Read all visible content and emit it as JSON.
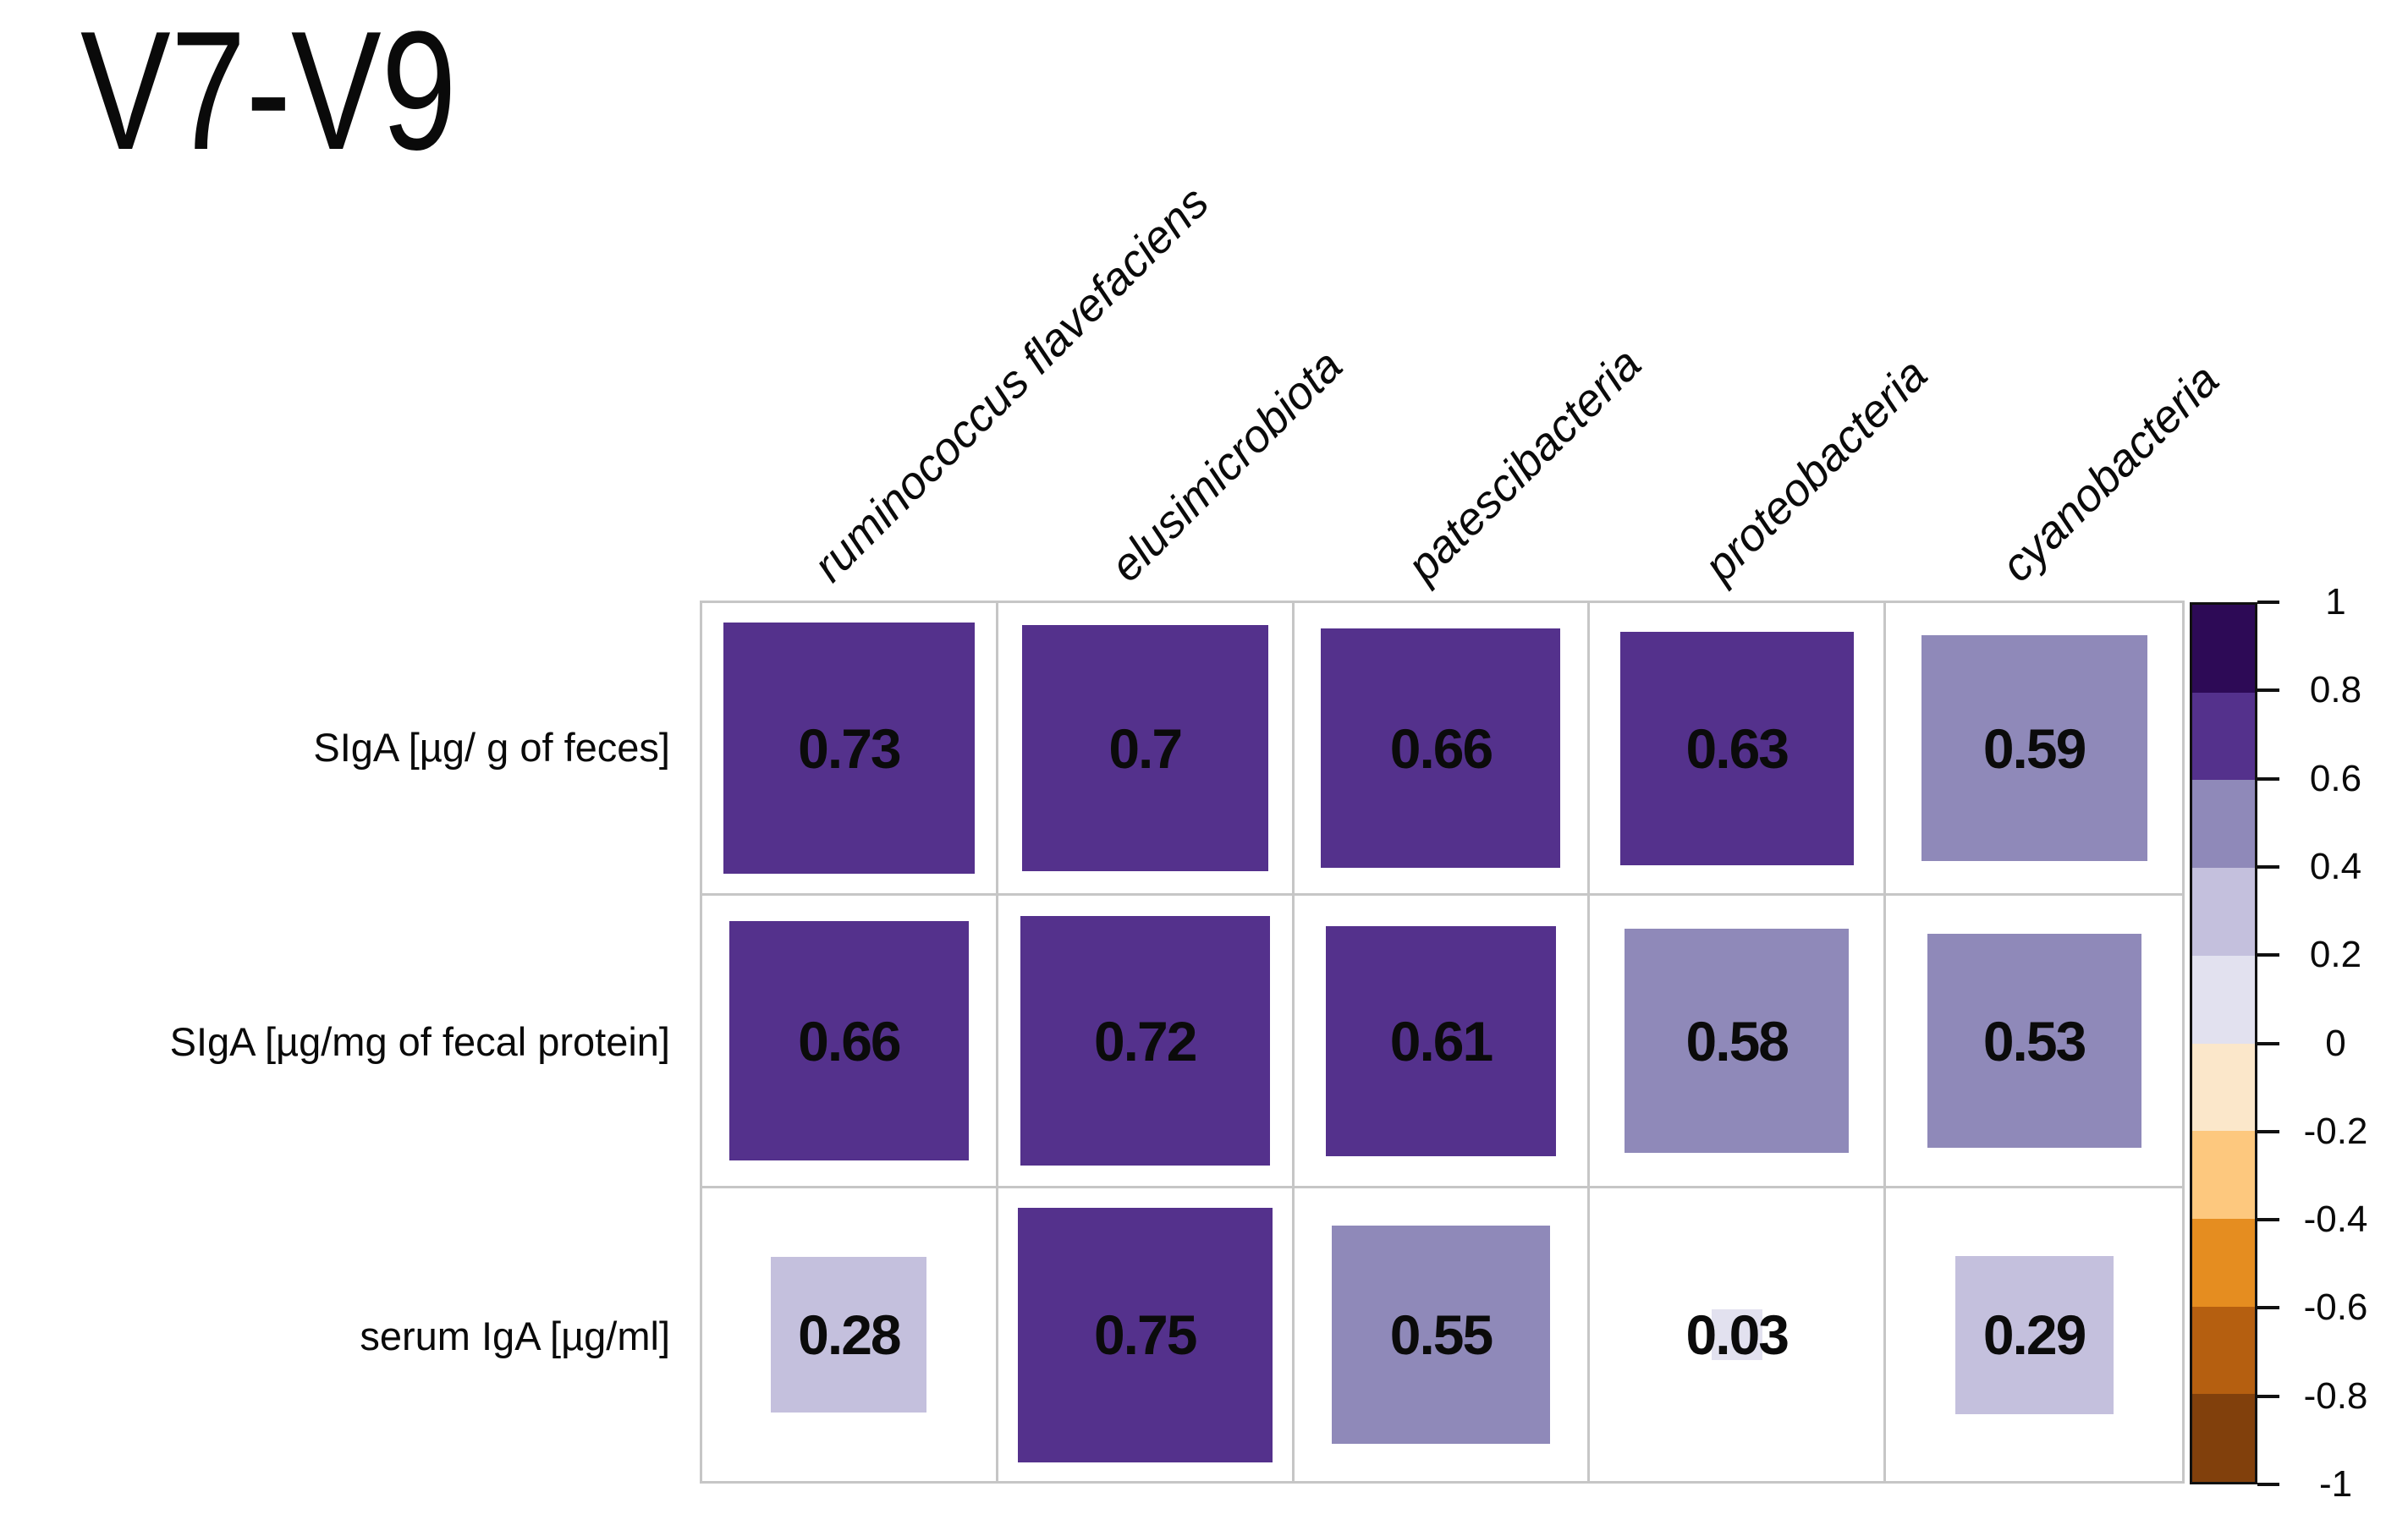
{
  "title": "V7-V9",
  "chart_data": {
    "type": "heatmap",
    "subtype": "correlation-matrix (colored squares with coefficients)",
    "title": "V7-V9",
    "columns": [
      "ruminococcus flavefaciens",
      "elusimicrobiota",
      "patescibacteria",
      "proteobacteria",
      "cyanobacteria"
    ],
    "rows": [
      "SIgA [µg/ g of feces]",
      "SIgA [µg/mg of fecal protein]",
      "serum IgA [µg/ml]"
    ],
    "values": [
      [
        0.73,
        0.7,
        0.66,
        0.63,
        0.59
      ],
      [
        0.66,
        0.72,
        0.61,
        0.58,
        0.53
      ],
      [
        0.28,
        0.75,
        0.55,
        0.03,
        0.29
      ]
    ],
    "value_labels": [
      [
        "0.73",
        "0.7",
        "0.66",
        "0.63",
        "0.59"
      ],
      [
        "0.66",
        "0.72",
        "0.61",
        "0.58",
        "0.53"
      ],
      [
        "0.28",
        "0.75",
        "0.55",
        "0.03",
        "0.29"
      ]
    ],
    "size_encoding": "square side proportional to sqrt(|r|) of the cell size",
    "grid_line_color": "#c6c6c6",
    "label_color": "#0a0a0a",
    "legend_position": "right",
    "colorbar": {
      "min": -1,
      "max": 1,
      "tick_labels": [
        "1",
        "0.8",
        "0.6",
        "0.4",
        "0.2",
        "0",
        "-0.2",
        "-0.4",
        "-0.6",
        "-0.8",
        "-1"
      ],
      "bin_colors_top_to_bottom": [
        "#2d0a56",
        "#54318c",
        "#8f89b9",
        "#c4c0dd",
        "#e2e1ef",
        "#fbe7ca",
        "#fdc87e",
        "#e58d20",
        "#b55f10",
        "#81400c"
      ]
    }
  }
}
